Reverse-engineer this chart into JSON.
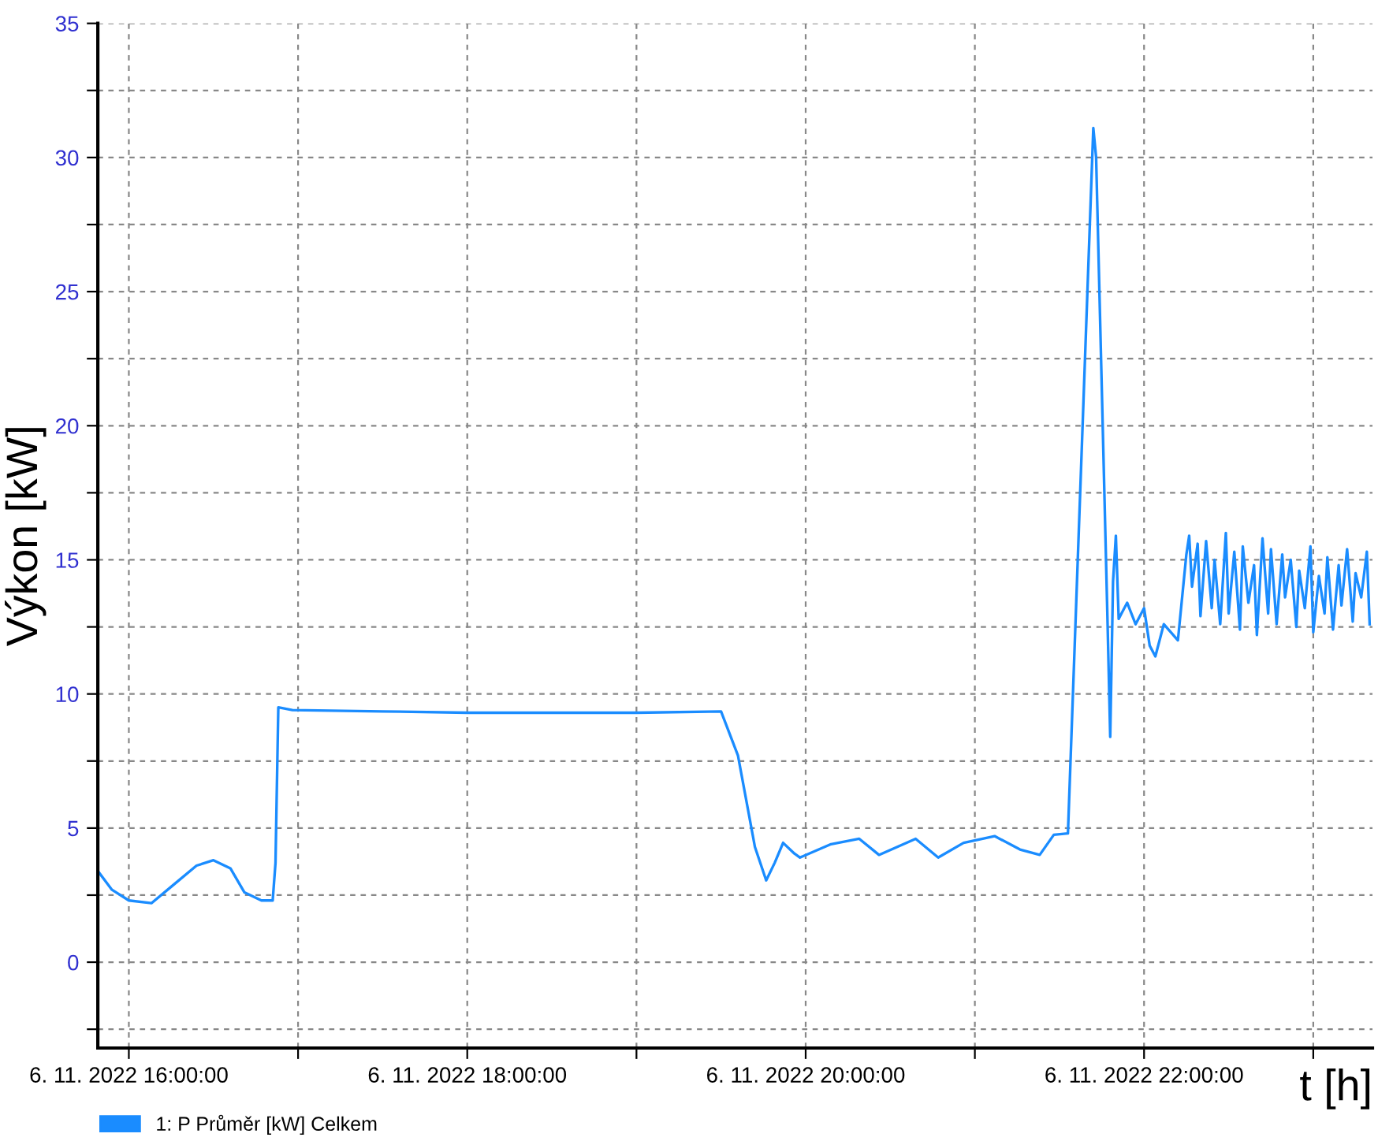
{
  "chart_data": {
    "type": "line",
    "xlabel": "t [h]",
    "ylabel": "Výkon [kW]",
    "xlim": [
      "2022-11-06T15:49",
      "2022-11-06T23:21"
    ],
    "xticks": [
      {
        "value": "2022-11-06T16:00",
        "label": "6. 11. 2022 16:00:00"
      },
      {
        "value": "2022-11-06T17:00",
        "label": null
      },
      {
        "value": "2022-11-06T18:00",
        "label": "6. 11. 2022 18:00:00"
      },
      {
        "value": "2022-11-06T19:00",
        "label": null
      },
      {
        "value": "2022-11-06T20:00",
        "label": "6. 11. 2022 20:00:00"
      },
      {
        "value": "2022-11-06T21:00",
        "label": null
      },
      {
        "value": "2022-11-06T22:00",
        "label": "6. 11. 2022 22:00:00"
      },
      {
        "value": "2022-11-06T23:00",
        "label": null
      }
    ],
    "ylim": [
      -3.2,
      35
    ],
    "yticks": [
      {
        "value": -2.5,
        "label": null
      },
      0,
      {
        "value": 2.5,
        "label": null
      },
      5,
      {
        "value": 7.5,
        "label": null
      },
      10,
      {
        "value": 12.5,
        "label": null
      },
      15,
      {
        "value": 17.5,
        "label": null
      },
      20,
      {
        "value": 22.5,
        "label": null
      },
      25,
      {
        "value": 27.5,
        "label": null
      },
      30,
      {
        "value": 32.5,
        "label": null
      },
      35
    ],
    "grid": true,
    "legend": "bottom left",
    "series": [
      {
        "name": "1: P Průměr [kW] Celkem",
        "color": "#1a8cff",
        "x": [
          "2022-11-06T15:49",
          "2022-11-06T15:54",
          "2022-11-06T16:00",
          "2022-11-06T16:08",
          "2022-11-06T16:16",
          "2022-11-06T16:24",
          "2022-11-06T16:30",
          "2022-11-06T16:36",
          "2022-11-06T16:41",
          "2022-11-06T16:47",
          "2022-11-06T16:51",
          "2022-11-06T16:52",
          "2022-11-06T16:53",
          "2022-11-06T16:58",
          "2022-11-06T17:30",
          "2022-11-06T18:00",
          "2022-11-06T18:30",
          "2022-11-06T19:00",
          "2022-11-06T19:30",
          "2022-11-06T19:36",
          "2022-11-06T19:42",
          "2022-11-06T19:46",
          "2022-11-06T19:49",
          "2022-11-06T19:52",
          "2022-11-06T19:56",
          "2022-11-06T19:58",
          "2022-11-06T20:09",
          "2022-11-06T20:19",
          "2022-11-06T20:26",
          "2022-11-06T20:39",
          "2022-11-06T20:47",
          "2022-11-06T20:56",
          "2022-11-06T21:07",
          "2022-11-06T21:16",
          "2022-11-06T21:23",
          "2022-11-06T21:28",
          "2022-11-06T21:33",
          "2022-11-06T21:42",
          "2022-11-06T21:43",
          "2022-11-06T21:44",
          "2022-11-06T21:47",
          "2022-11-06T21:48",
          "2022-11-06T21:49",
          "2022-11-06T21:50",
          "2022-11-06T21:51",
          "2022-11-06T21:52",
          "2022-11-06T21:54",
          "2022-11-06T21:57",
          "2022-11-06T22:00",
          "2022-11-06T22:02",
          "2022-11-06T22:04",
          "2022-11-06T22:07",
          "2022-11-06T22:12",
          "2022-11-06T22:15",
          "2022-11-06T22:16",
          "2022-11-06T22:17",
          "2022-11-06T22:19",
          "2022-11-06T22:20",
          "2022-11-06T22:22",
          "2022-11-06T22:24",
          "2022-11-06T22:25",
          "2022-11-06T22:27",
          "2022-11-06T22:29",
          "2022-11-06T22:30",
          "2022-11-06T22:32",
          "2022-11-06T22:34",
          "2022-11-06T22:35",
          "2022-11-06T22:37",
          "2022-11-06T22:39",
          "2022-11-06T22:40",
          "2022-11-06T22:42",
          "2022-11-06T22:44",
          "2022-11-06T22:45",
          "2022-11-06T22:47",
          "2022-11-06T22:49",
          "2022-11-06T22:50",
          "2022-11-06T22:52",
          "2022-11-06T22:54",
          "2022-11-06T22:55",
          "2022-11-06T22:57",
          "2022-11-06T22:59",
          "2022-11-06T23:00",
          "2022-11-06T23:02",
          "2022-11-06T23:04",
          "2022-11-06T23:05",
          "2022-11-06T23:07",
          "2022-11-06T23:09",
          "2022-11-06T23:10",
          "2022-11-06T23:12",
          "2022-11-06T23:14",
          "2022-11-06T23:15",
          "2022-11-06T23:17",
          "2022-11-06T23:19",
          "2022-11-06T23:20"
        ],
        "values": [
          3.4,
          2.7,
          2.3,
          2.2,
          2.9,
          3.6,
          3.8,
          3.5,
          2.6,
          2.3,
          2.3,
          3.7,
          9.5,
          9.4,
          9.35,
          9.3,
          9.3,
          9.3,
          9.35,
          7.7,
          4.3,
          3.05,
          3.7,
          4.45,
          4.05,
          3.9,
          4.4,
          4.6,
          4.0,
          4.6,
          3.9,
          4.45,
          4.7,
          4.2,
          4.0,
          4.75,
          4.8,
          31.1,
          30.0,
          25.7,
          12.9,
          8.4,
          14.2,
          15.9,
          12.8,
          13.0,
          13.4,
          12.6,
          13.2,
          11.8,
          11.4,
          12.6,
          12.0,
          15.2,
          15.9,
          14.0,
          15.6,
          12.9,
          15.7,
          13.2,
          15.0,
          12.6,
          16.0,
          13.0,
          15.3,
          12.4,
          15.5,
          13.4,
          14.8,
          12.2,
          15.8,
          13.0,
          15.4,
          12.6,
          15.2,
          13.6,
          15.0,
          12.5,
          14.6,
          13.2,
          15.5,
          12.3,
          14.4,
          13.0,
          15.1,
          12.4,
          14.8,
          13.3,
          15.4,
          12.7,
          14.5,
          13.6,
          15.3,
          12.6
        ]
      }
    ]
  }
}
